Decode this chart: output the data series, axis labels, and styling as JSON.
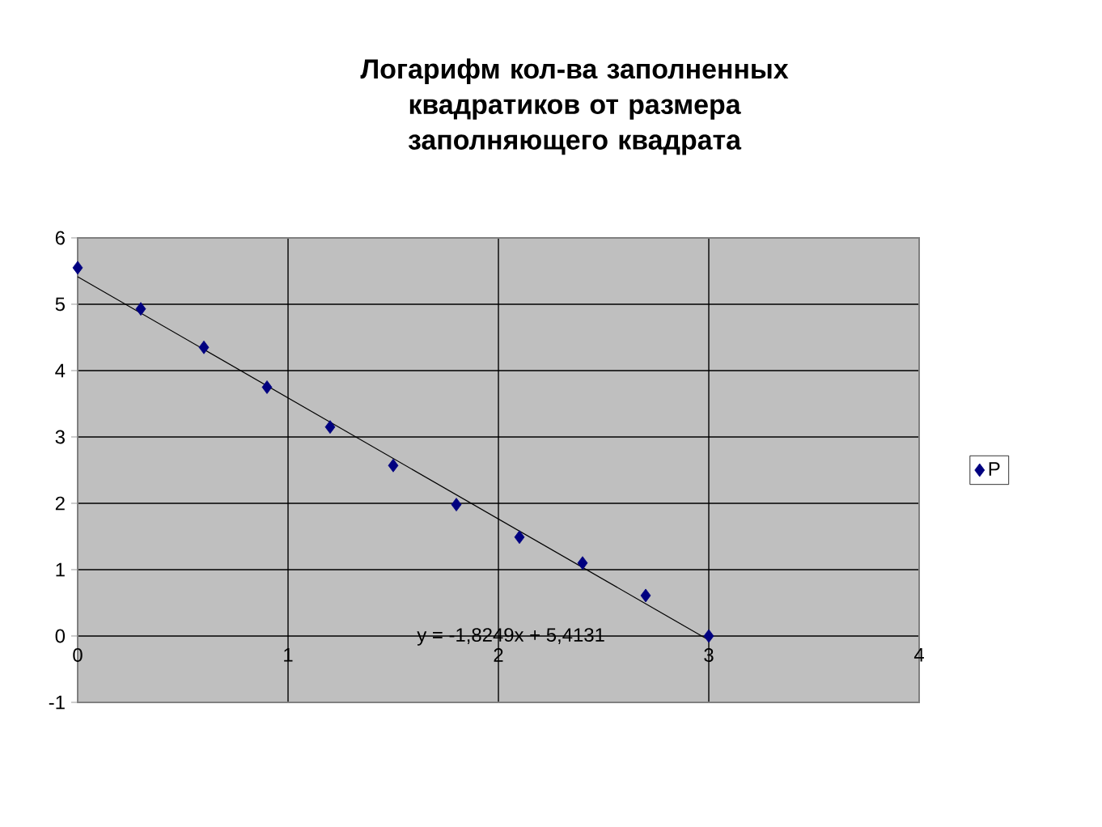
{
  "chart_data": {
    "type": "scatter",
    "title": "Логарифм кол-ва заполненных квадратиков от размера заполняющего квадрата",
    "x": [
      0,
      0.3,
      0.6,
      0.9,
      1.2,
      1.5,
      1.8,
      2.1,
      2.4,
      2.7,
      3.0
    ],
    "series": [
      {
        "name": "P",
        "color": "#000080",
        "marker": "diamond",
        "values": [
          5.55,
          4.93,
          4.35,
          3.75,
          3.15,
          2.57,
          1.98,
          1.49,
          1.1,
          0.61,
          0.0
        ]
      },
      {
        "type": "line",
        "color": "#000000",
        "marker": "none",
        "x": [
          0,
          3
        ],
        "values": [
          5.4131,
          -0.0616
        ]
      }
    ],
    "annotations": [
      "y = -1,8249x + 5,4131"
    ],
    "xlim": [
      0,
      4
    ],
    "xticks": [
      0,
      1,
      2,
      3,
      4
    ],
    "ylim": [
      -1,
      6
    ],
    "yticks": [
      -1,
      0,
      1,
      2,
      3,
      4,
      5,
      6
    ],
    "grid": true,
    "legend": "right"
  }
}
